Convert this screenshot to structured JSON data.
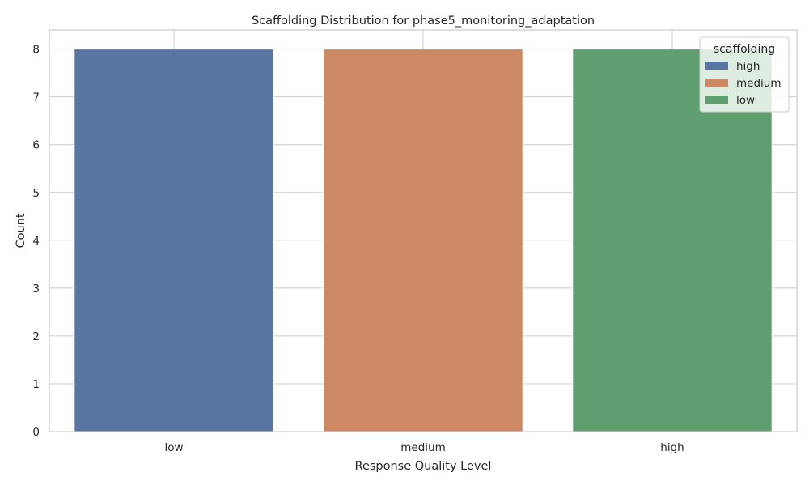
{
  "chart_data": {
    "type": "bar",
    "title": "Scaffolding Distribution for phase5_monitoring_adaptation",
    "xlabel": "Response Quality Level",
    "ylabel": "Count",
    "categories": [
      "low",
      "medium",
      "high"
    ],
    "ylim": [
      0,
      8.4
    ],
    "yticks": [
      0,
      1,
      2,
      3,
      4,
      5,
      6,
      7,
      8
    ],
    "grid": true,
    "legend": {
      "title": "scaffolding",
      "placement": "top-right"
    },
    "series": [
      {
        "name": "high",
        "color": "#5975a4",
        "values": [
          8,
          null,
          null
        ]
      },
      {
        "name": "medium",
        "color": "#cc8963",
        "values": [
          null,
          8,
          null
        ]
      },
      {
        "name": "low",
        "color": "#5f9e6e",
        "values": [
          null,
          null,
          8
        ]
      }
    ]
  }
}
